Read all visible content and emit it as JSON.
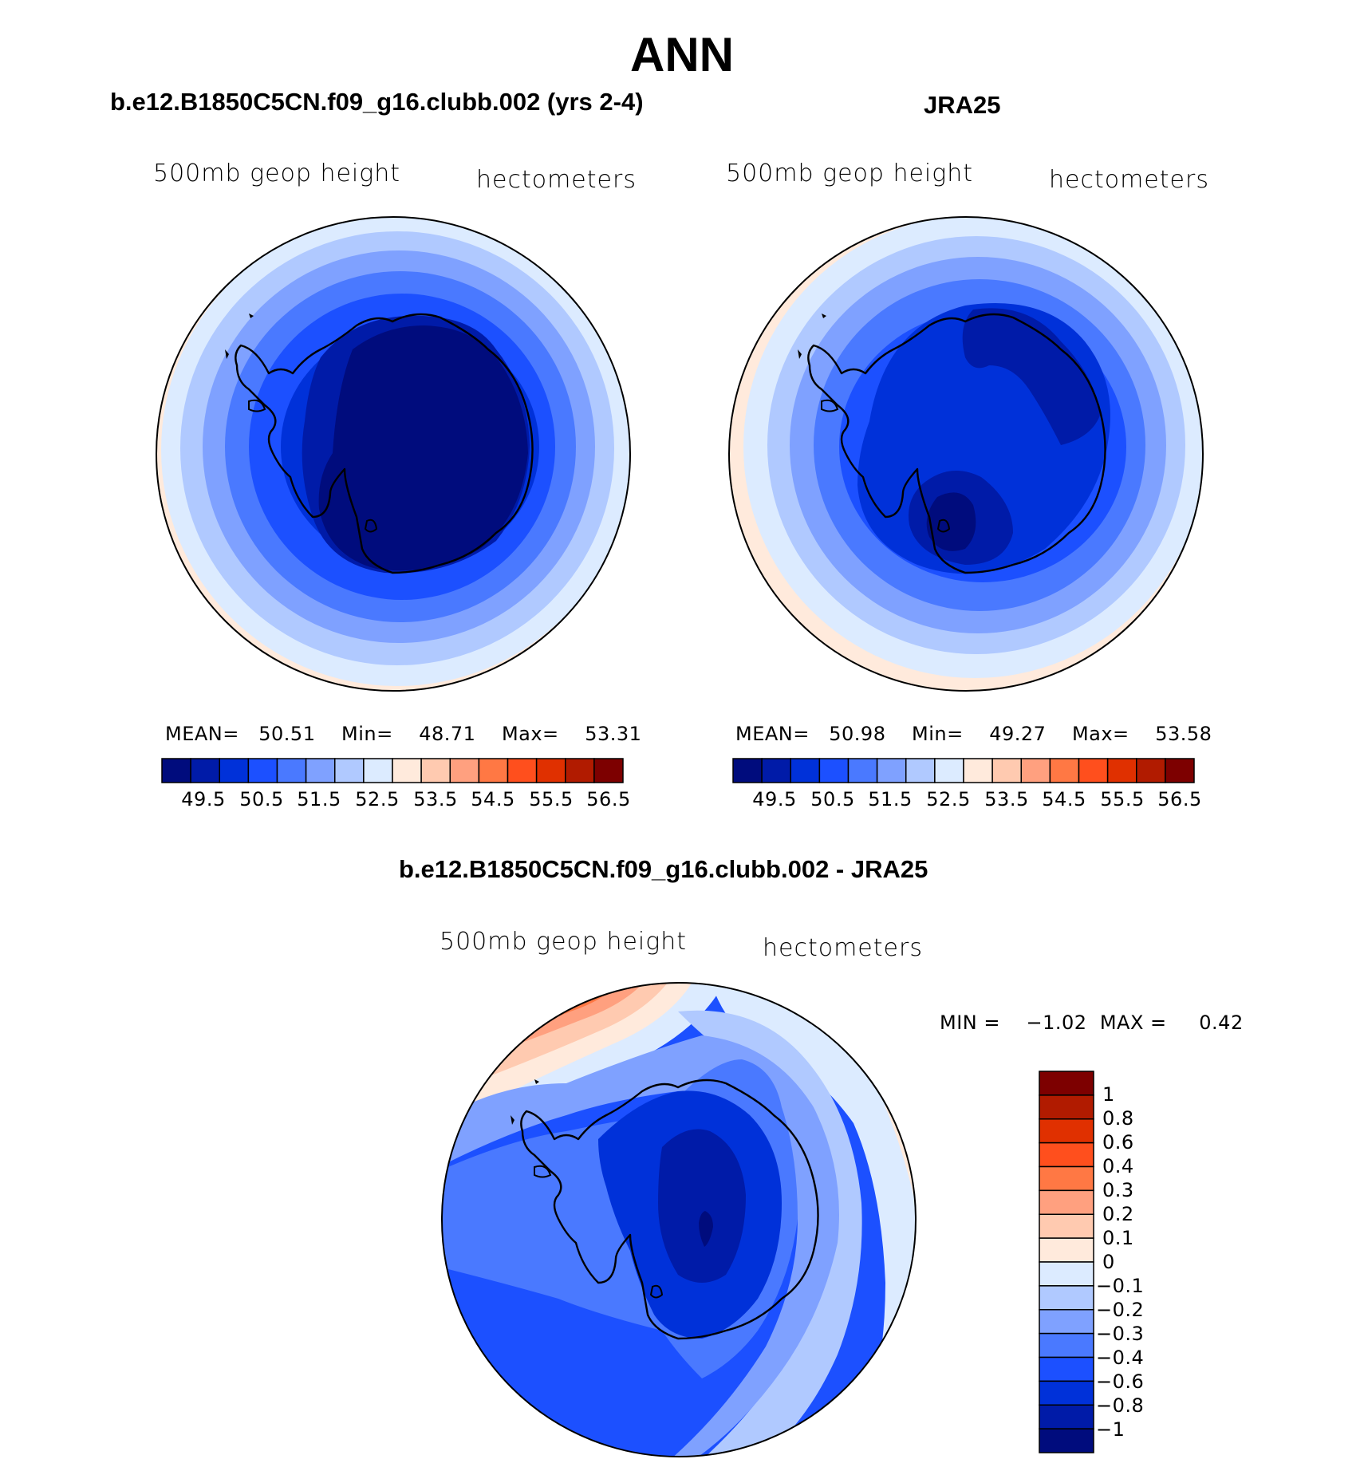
{
  "figure": {
    "title": "ANN"
  },
  "panels": [
    {
      "id": "model",
      "case_title": "b.e12.B1850C5CN.f09_g16.clubb.002 (yrs 2-4)",
      "variable": "500mb geop height",
      "units": "hectometers",
      "stats": {
        "mean_label": "MEAN=",
        "mean": "50.51",
        "min_label": "Min=",
        "min": "48.71",
        "max_label": "Max=",
        "max": "53.31"
      },
      "colorbar": {
        "colors": [
          "#000c7d",
          "#001ba8",
          "#0031d9",
          "#1c50ff",
          "#4a79ff",
          "#7fa1ff",
          "#b0c9ff",
          "#dcebff",
          "#ffeadc",
          "#ffcab0",
          "#ffa07f",
          "#ff7844",
          "#ff4f1d",
          "#e03000",
          "#b11b00",
          "#7d0000"
        ],
        "labels": [
          "49.5",
          "50.5",
          "51.5",
          "52.5",
          "53.5",
          "54.5",
          "55.5",
          "56.5"
        ]
      }
    },
    {
      "id": "obs",
      "case_title": "JRA25",
      "variable": "500mb geop height",
      "units": "hectometers",
      "stats": {
        "mean_label": "MEAN=",
        "mean": "50.98",
        "min_label": "Min=",
        "min": "49.27",
        "max_label": "Max=",
        "max": "53.58"
      },
      "colorbar": {
        "colors": [
          "#000c7d",
          "#001ba8",
          "#0031d9",
          "#1c50ff",
          "#4a79ff",
          "#7fa1ff",
          "#b0c9ff",
          "#dcebff",
          "#ffeadc",
          "#ffcab0",
          "#ffa07f",
          "#ff7844",
          "#ff4f1d",
          "#e03000",
          "#b11b00",
          "#7d0000"
        ],
        "labels": [
          "49.5",
          "50.5",
          "51.5",
          "52.5",
          "53.5",
          "54.5",
          "55.5",
          "56.5"
        ]
      }
    },
    {
      "id": "diff",
      "case_title": "b.e12.B1850C5CN.f09_g16.clubb.002 - JRA25",
      "variable": "500mb geop height",
      "units": "hectometers",
      "stats": {
        "min_label": "MIN =",
        "min": "−1.02",
        "max_label": "MAX =",
        "max": "0.42"
      },
      "colorbar": {
        "colors_top_to_bottom": [
          "#7d0000",
          "#b11b00",
          "#e03000",
          "#ff4f1d",
          "#ff7844",
          "#ffa07f",
          "#ffcab0",
          "#ffeadc",
          "#dcebff",
          "#b0c9ff",
          "#7fa1ff",
          "#4a79ff",
          "#1c50ff",
          "#0031d9",
          "#001ba8",
          "#000c7d"
        ],
        "labels_top_to_bottom": [
          "1",
          "0.8",
          "0.6",
          "0.4",
          "0.3",
          "0.2",
          "0.1",
          "0",
          "−0.1",
          "−0.2",
          "−0.3",
          "−0.4",
          "−0.6",
          "−0.8",
          "−1"
        ]
      }
    }
  ]
}
